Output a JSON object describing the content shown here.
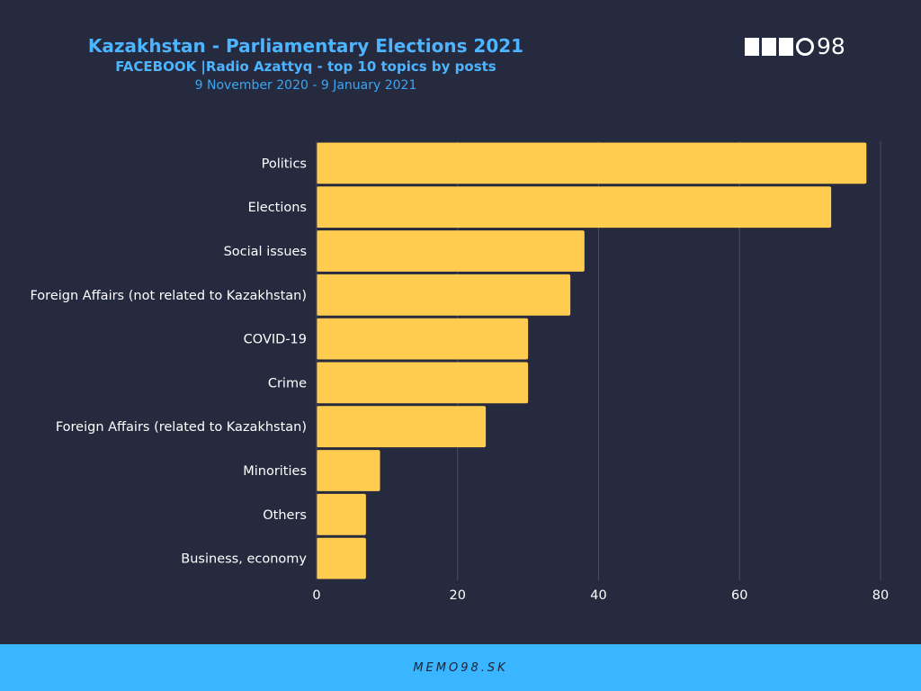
{
  "header": {
    "title": "Kazakhstan - Parliamentary Elections 2021",
    "subtitle": "FACEBOOK |Radio Azattyq - top 10  topics by posts",
    "date_range": "9 November 2020 - 9 January 2021"
  },
  "logo": {
    "text": "98"
  },
  "footer": {
    "text": "MEMO98.SK"
  },
  "colors": {
    "background": "#262a3f",
    "bar": "#ffcc4f",
    "grid": "#4a4e63",
    "text": "#ffffff",
    "title": "#4db4ff",
    "footer": "#3ab5ff"
  },
  "chart_data": {
    "type": "bar",
    "orientation": "horizontal",
    "title": "Kazakhstan - Parliamentary Elections 2021",
    "subtitle": "FACEBOOK |Radio Azattyq - top 10  topics by posts",
    "categories": [
      "Politics",
      "Elections",
      "Social issues",
      "Foreign Affairs (not related to Kazakhstan)",
      "COVID-19",
      "Crime",
      "Foreign Affairs (related to Kazakhstan)",
      "Minorities",
      "Others",
      "Business, economy"
    ],
    "values": [
      78,
      73,
      38,
      36,
      30,
      30,
      24,
      9,
      7,
      7
    ],
    "xlim": [
      0,
      80
    ],
    "xticks": [
      0,
      20,
      40,
      60,
      80
    ],
    "grid": true,
    "legend": "none"
  }
}
